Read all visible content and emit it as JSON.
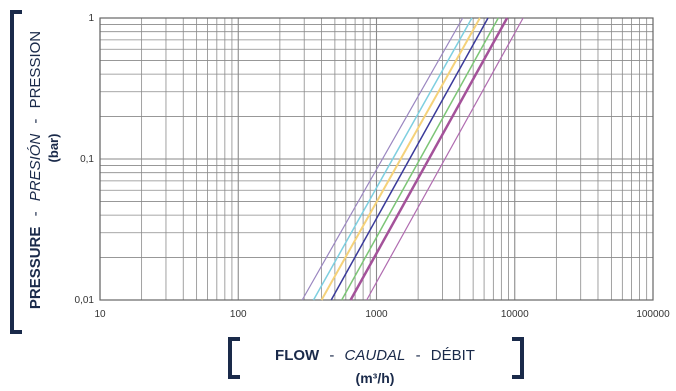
{
  "chart_data": {
    "type": "line",
    "x_scale": "log",
    "y_scale": "log",
    "xlim": [
      10,
      100000
    ],
    "ylim": [
      0.01,
      1
    ],
    "x_ticks": [
      "10",
      "100",
      "1000",
      "10000",
      "100000"
    ],
    "y_ticks": [
      "0,01",
      "0,1",
      "1"
    ],
    "grid": true,
    "xlabel": {
      "en": "FLOW",
      "sep1": "-",
      "es": "CAUDAL",
      "sep2": "-",
      "fr": "DÉBIT",
      "unit": "(m³/h)"
    },
    "ylabel": {
      "en": "PRESSURE",
      "sep1": "-",
      "es": "PRESIÓN",
      "sep2": "-",
      "fr": "PRESSION",
      "unit": "(bar)"
    },
    "series": [
      {
        "color": "#9a86c0",
        "width": 1.2,
        "points": [
          [
            290,
            0.01
          ],
          [
            4200,
            1
          ]
        ]
      },
      {
        "color": "#7ecfe0",
        "width": 1.5,
        "points": [
          [
            350,
            0.01
          ],
          [
            4900,
            1
          ]
        ]
      },
      {
        "color": "#f5d27a",
        "width": 2.0,
        "points": [
          [
            400,
            0.01
          ],
          [
            5600,
            1
          ]
        ]
      },
      {
        "color": "#3a3a9a",
        "width": 1.5,
        "points": [
          [
            470,
            0.01
          ],
          [
            6400,
            1
          ]
        ]
      },
      {
        "color": "#7cc576",
        "width": 1.5,
        "points": [
          [
            560,
            0.01
          ],
          [
            7600,
            1
          ]
        ]
      },
      {
        "color": "#a4529a",
        "width": 2.5,
        "points": [
          [
            650,
            0.01
          ],
          [
            8800,
            1
          ]
        ]
      },
      {
        "color": "#b06cb0",
        "width": 1.2,
        "points": [
          [
            850,
            0.01
          ],
          [
            11500,
            1
          ]
        ]
      }
    ],
    "colors": {
      "grid": "#8a8a8a",
      "axis": "#666666",
      "text": "#333333",
      "label": "#1a2a4a",
      "bracket": "#1a2a4a"
    }
  }
}
